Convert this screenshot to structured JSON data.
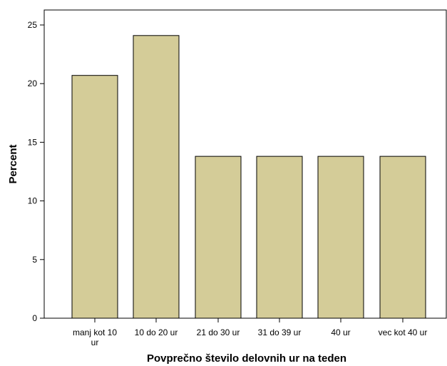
{
  "chart_data": {
    "type": "bar",
    "title": "",
    "xlabel": "Povprečno število delovnih ur na teden",
    "ylabel": "Percent",
    "categories": [
      [
        "manj kot 10",
        "ur"
      ],
      [
        "10 do 20 ur"
      ],
      [
        "21 do 30 ur"
      ],
      [
        "31 do 39 ur"
      ],
      [
        "40 ur"
      ],
      [
        "vec kot 40 ur"
      ]
    ],
    "values": [
      20.7,
      24.1,
      13.8,
      13.8,
      13.8,
      13.8
    ],
    "ylim": [
      0,
      25
    ],
    "yticks": [
      0,
      5,
      10,
      15,
      20,
      25
    ],
    "grid": false,
    "legend": "none",
    "bar_color": "#d4cc98",
    "border_color": "#000000"
  }
}
